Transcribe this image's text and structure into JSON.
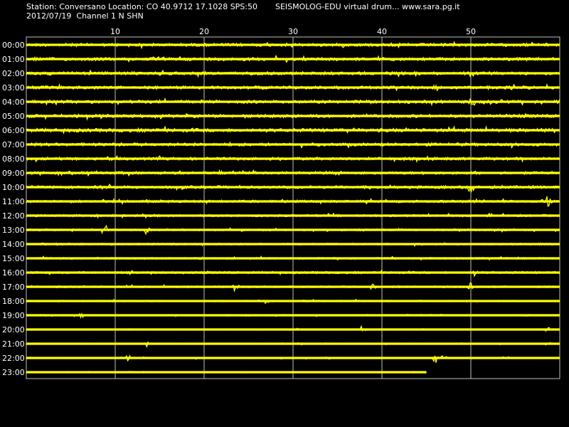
{
  "header": {
    "station_line": "Station: Conversano Location: CO 40.9712 17.1028 SPS:50",
    "date_line": "2012/07/19  Channel 1 N SHN",
    "brand_line": "SEISMOLOG-EDU virtual drum... www.sara.pg.it"
  },
  "chart_data": {
    "type": "line",
    "title": "",
    "xlabel": "",
    "ylabel": "",
    "x_unit": "minutes",
    "xlim": [
      0,
      60
    ],
    "x_ticks": [
      10,
      20,
      30,
      40,
      50
    ],
    "x_tick_labels": [
      "10",
      "20",
      "30",
      "40",
      "50"
    ],
    "grid": true,
    "trace_color": "#ffff00",
    "background_color": "#000000",
    "grid_color": "#c0c0c0",
    "row_labels": [
      "00:00",
      "01:00",
      "02:00",
      "03:00",
      "04:00",
      "05:00",
      "06:00",
      "07:00",
      "08:00",
      "09:00",
      "10:00",
      "11:00",
      "12:00",
      "13:00",
      "14:00",
      "15:00",
      "16:00",
      "17:00",
      "18:00",
      "19:00",
      "20:00",
      "21:00",
      "22:00",
      "23:00"
    ],
    "rows": [
      {
        "hour": "00:00",
        "end_minute": 60,
        "noise": 1.0,
        "spikes": []
      },
      {
        "hour": "01:00",
        "end_minute": 60,
        "noise": 1.0,
        "spikes": []
      },
      {
        "hour": "02:00",
        "end_minute": 60,
        "noise": 1.0,
        "spikes": []
      },
      {
        "hour": "03:00",
        "end_minute": 60,
        "noise": 1.0,
        "spikes": [
          [
            46.2,
            0.6
          ]
        ]
      },
      {
        "hour": "04:00",
        "end_minute": 60,
        "noise": 1.0,
        "spikes": [
          [
            50.1,
            1.8
          ],
          [
            53.2,
            0.7
          ]
        ]
      },
      {
        "hour": "05:00",
        "end_minute": 60,
        "noise": 1.0,
        "spikes": []
      },
      {
        "hour": "06:00",
        "end_minute": 60,
        "noise": 1.1,
        "spikes": []
      },
      {
        "hour": "07:00",
        "end_minute": 60,
        "noise": 1.0,
        "spikes": []
      },
      {
        "hour": "08:00",
        "end_minute": 60,
        "noise": 0.9,
        "spikes": []
      },
      {
        "hour": "09:00",
        "end_minute": 60,
        "noise": 0.9,
        "spikes": []
      },
      {
        "hour": "10:00",
        "end_minute": 60,
        "noise": 0.9,
        "spikes": [
          [
            50.0,
            1.5
          ]
        ]
      },
      {
        "hour": "11:00",
        "end_minute": 60,
        "noise": 0.8,
        "spikes": [
          [
            58.0,
            1.6
          ],
          [
            58.7,
            1.6
          ]
        ]
      },
      {
        "hour": "12:00",
        "end_minute": 60,
        "noise": 0.7,
        "spikes": []
      },
      {
        "hour": "13:00",
        "end_minute": 60,
        "noise": 0.6,
        "spikes": [
          [
            8.8,
            1.0
          ],
          [
            13.5,
            0.8
          ]
        ]
      },
      {
        "hour": "14:00",
        "end_minute": 60,
        "noise": 0.6,
        "spikes": []
      },
      {
        "hour": "15:00",
        "end_minute": 60,
        "noise": 0.6,
        "spikes": []
      },
      {
        "hour": "16:00",
        "end_minute": 60,
        "noise": 0.7,
        "spikes": [
          [
            50.5,
            1.0
          ]
        ]
      },
      {
        "hour": "17:00",
        "end_minute": 60,
        "noise": 0.6,
        "spikes": [
          [
            23.5,
            1.0
          ],
          [
            39.0,
            0.7
          ],
          [
            50.0,
            0.8
          ]
        ]
      },
      {
        "hour": "18:00",
        "end_minute": 60,
        "noise": 0.5,
        "spikes": [
          [
            27.0,
            0.6
          ]
        ]
      },
      {
        "hour": "19:00",
        "end_minute": 60,
        "noise": 0.4,
        "spikes": [
          [
            2.0,
            0.7
          ],
          [
            6.3,
            0.6
          ]
        ]
      },
      {
        "hour": "20:00",
        "end_minute": 60,
        "noise": 0.4,
        "spikes": [
          [
            37.5,
            0.8
          ],
          [
            58.6,
            0.6
          ]
        ]
      },
      {
        "hour": "21:00",
        "end_minute": 60,
        "noise": 0.4,
        "spikes": [
          [
            13.5,
            0.6
          ]
        ]
      },
      {
        "hour": "22:00",
        "end_minute": 60,
        "noise": 0.4,
        "spikes": [
          [
            11.5,
            0.8
          ],
          [
            46.0,
            1.0
          ],
          [
            47.0,
            0.7
          ]
        ]
      },
      {
        "hour": "23:00",
        "end_minute": 45,
        "noise": 0.3,
        "spikes": []
      }
    ]
  }
}
